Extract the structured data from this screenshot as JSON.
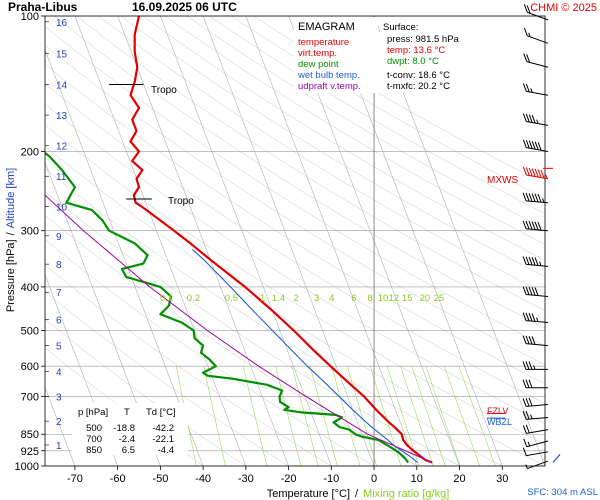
{
  "header": {
    "station": "Praha-Libus",
    "datetime": "16.09.2025 06 UTC",
    "credit": "CHMI © 2025"
  },
  "legend": {
    "title": "EMAGRAM",
    "items": [
      {
        "label": "temperature",
        "color": "#e00000"
      },
      {
        "label": "virt.temp.",
        "color": "#e00000"
      },
      {
        "label": "dew point",
        "color": "#009000"
      },
      {
        "label": "wet bulb temp.",
        "color": "#1e60d0"
      },
      {
        "label": "udpraft v.temp.",
        "color": "#a000a0"
      }
    ]
  },
  "surface": {
    "title": "Surface:",
    "lines": [
      {
        "text": "press: 981.5 hPa",
        "color": "#000000"
      },
      {
        "text": "temp: 13.6 °C",
        "color": "#e00000"
      },
      {
        "text": "dwpt: 8.0 °C",
        "color": "#009000"
      },
      {
        "text": "t-conv: 18.6 °C",
        "color": "#000000"
      },
      {
        "text": "t-mxfc: 20.2 °C",
        "color": "#000000"
      }
    ]
  },
  "summary_table": {
    "headers": [
      "p [hPa]",
      "T",
      "Td [°C]"
    ],
    "rows": [
      [
        "500",
        "-18.8",
        "-42.2"
      ],
      [
        "700",
        "-2.4",
        "-22.1"
      ],
      [
        "850",
        "6.5",
        "-4.4"
      ]
    ]
  },
  "annotations": {
    "tropo_label": "Tropo",
    "mxws_label": "MXWS",
    "fzl_label": "FZLV",
    "wbzl_label": "WBZL",
    "sfc_label": "SFC: 304 m ASL"
  },
  "colors": {
    "temperature": "#e00000",
    "dewpoint": "#009000",
    "wetbulb": "#1e60d0",
    "parcel": "#a000a0",
    "mixing_ratio": "#99dd55",
    "mixing_label": "#88cc22",
    "isotherm": "#b0b0b0",
    "altitude_label": "#2040c0"
  },
  "chart_data": {
    "type": "line",
    "title": "",
    "xlabel": "Temperature [°C]",
    "xlabel_sep": "/",
    "xlabel2": "Mixing ratio [g/kg]",
    "ylabel": "Pressure [hPa]",
    "ylabel_sep": "/",
    "ylabel2": "Altitude [km]",
    "x_ticks": [
      -70,
      -60,
      -50,
      -40,
      -30,
      -20,
      -10,
      0,
      10,
      20,
      30
    ],
    "xlim": [
      -77,
      40
    ],
    "y_scale": "log",
    "ylim": [
      1000,
      100
    ],
    "y_ticks": [
      100,
      200,
      300,
      400,
      500,
      600,
      700,
      850,
      925,
      1000
    ],
    "altitude_ticks_km": [
      {
        "km": "1",
        "p": 898
      },
      {
        "km": "2",
        "p": 795
      },
      {
        "km": "3",
        "p": 701
      },
      {
        "km": "4",
        "p": 616
      },
      {
        "km": "5",
        "p": 540
      },
      {
        "km": "6",
        "p": 472
      },
      {
        "km": "7",
        "p": 411
      },
      {
        "km": "8",
        "p": 356
      },
      {
        "km": "9",
        "p": 308
      },
      {
        "km": "10",
        "p": 265
      },
      {
        "km": "11",
        "p": 227
      },
      {
        "km": "12",
        "p": 194
      },
      {
        "km": "13",
        "p": 166
      },
      {
        "km": "14",
        "p": 142
      },
      {
        "km": "15",
        "p": 121
      },
      {
        "km": "16",
        "p": 103
      }
    ],
    "mixing_ratio_labels": [
      "0.1",
      "0.2",
      "0.5",
      "1",
      "1.4",
      "2",
      "3",
      "4",
      "6",
      "8",
      "10",
      "12",
      "15",
      "20",
      "25"
    ],
    "mixing_ratio_values": [
      0.1,
      0.2,
      0.5,
      1,
      1.4,
      2,
      3,
      4,
      6,
      8,
      10,
      12,
      15,
      20,
      25
    ],
    "series": [
      {
        "key": "temperature",
        "points": [
          [
            982,
            13.6
          ],
          [
            970,
            12.0
          ],
          [
            950,
            10.8
          ],
          [
            925,
            9.2
          ],
          [
            900,
            7.8
          ],
          [
            875,
            6.8
          ],
          [
            850,
            6.5
          ],
          [
            820,
            4.8
          ],
          [
            800,
            3.5
          ],
          [
            750,
            0.5
          ],
          [
            700,
            -2.4
          ],
          [
            650,
            -6.2
          ],
          [
            600,
            -10.2
          ],
          [
            550,
            -14.4
          ],
          [
            500,
            -18.8
          ],
          [
            450,
            -24.0
          ],
          [
            420,
            -27.6
          ],
          [
            400,
            -30.2
          ],
          [
            380,
            -33.2
          ],
          [
            350,
            -38.0
          ],
          [
            320,
            -43.0
          ],
          [
            300,
            -46.8
          ],
          [
            280,
            -51.0
          ],
          [
            265,
            -54.4
          ],
          [
            260,
            -55.8
          ],
          [
            250,
            -56.2
          ],
          [
            240,
            -55.0
          ],
          [
            230,
            -55.6
          ],
          [
            220,
            -54.2
          ],
          [
            210,
            -56.6
          ],
          [
            200,
            -55.0
          ],
          [
            190,
            -57.0
          ],
          [
            180,
            -55.6
          ],
          [
            170,
            -56.6
          ],
          [
            160,
            -55.0
          ],
          [
            150,
            -57.0
          ],
          [
            140,
            -56.0
          ],
          [
            130,
            -55.4
          ],
          [
            120,
            -56.0
          ],
          [
            110,
            -56.0
          ],
          [
            100,
            -55.0
          ]
        ]
      },
      {
        "key": "dewpoint",
        "points": [
          [
            982,
            8.0
          ],
          [
            960,
            7.2
          ],
          [
            930,
            5.6
          ],
          [
            900,
            3.2
          ],
          [
            875,
            1.0
          ],
          [
            860,
            -3.0
          ],
          [
            850,
            -4.4
          ],
          [
            830,
            -5.8
          ],
          [
            820,
            -8.0
          ],
          [
            800,
            -9.5
          ],
          [
            780,
            -7.5
          ],
          [
            770,
            -9.0
          ],
          [
            760,
            -17.0
          ],
          [
            750,
            -21.0
          ],
          [
            740,
            -20.0
          ],
          [
            720,
            -22.0
          ],
          [
            700,
            -22.1
          ],
          [
            680,
            -21.5
          ],
          [
            660,
            -25.0
          ],
          [
            640,
            -33.0
          ],
          [
            630,
            -39.0
          ],
          [
            620,
            -40.0
          ],
          [
            600,
            -37.0
          ],
          [
            580,
            -38.5
          ],
          [
            560,
            -40.5
          ],
          [
            540,
            -40.0
          ],
          [
            520,
            -42.0
          ],
          [
            500,
            -42.2
          ],
          [
            480,
            -45.0
          ],
          [
            460,
            -50.0
          ],
          [
            440,
            -48.0
          ],
          [
            420,
            -47.5
          ],
          [
            400,
            -50.0
          ],
          [
            380,
            -58.0
          ],
          [
            365,
            -59.0
          ],
          [
            355,
            -54.0
          ],
          [
            340,
            -53.0
          ],
          [
            320,
            -56.0
          ],
          [
            300,
            -62.0
          ],
          [
            285,
            -63.5
          ],
          [
            270,
            -66.0
          ],
          [
            260,
            -72.0
          ],
          [
            240,
            -70.0
          ],
          [
            220,
            -73.0
          ],
          [
            205,
            -76.0
          ],
          [
            195,
            -79.0
          ]
        ]
      },
      {
        "key": "wetbulb",
        "points": [
          [
            982,
            10.2
          ],
          [
            950,
            8.3
          ],
          [
            925,
            6.5
          ],
          [
            900,
            4.6
          ],
          [
            875,
            3.2
          ],
          [
            850,
            1.5
          ],
          [
            820,
            -0.5
          ],
          [
            800,
            -1.8
          ],
          [
            750,
            -5.0
          ],
          [
            700,
            -8.2
          ],
          [
            650,
            -11.7
          ],
          [
            600,
            -15.6
          ],
          [
            550,
            -19.5
          ],
          [
            500,
            -23.8
          ],
          [
            450,
            -28.5
          ],
          [
            400,
            -33.6
          ],
          [
            350,
            -39.6
          ],
          [
            330,
            -42.5
          ]
        ]
      },
      {
        "key": "parcel",
        "points": [
          [
            982,
            13.6
          ],
          [
            850,
            -1.5
          ],
          [
            800,
            -6.0
          ],
          [
            700,
            -16.0
          ],
          [
            600,
            -27.0
          ],
          [
            500,
            -39.0
          ],
          [
            400,
            -52.5
          ],
          [
            300,
            -68.0
          ],
          [
            250,
            -77.0
          ]
        ]
      }
    ],
    "wind_barbs": [
      {
        "p": 975,
        "dir": 250,
        "spd": 5
      },
      {
        "p": 930,
        "dir": 260,
        "spd": 10
      },
      {
        "p": 880,
        "dir": 255,
        "spd": 15
      },
      {
        "p": 830,
        "dir": 260,
        "spd": 20
      },
      {
        "p": 780,
        "dir": 265,
        "spd": 25
      },
      {
        "p": 730,
        "dir": 265,
        "spd": 30
      },
      {
        "p": 670,
        "dir": 270,
        "spd": 30
      },
      {
        "p": 610,
        "dir": 270,
        "spd": 35
      },
      {
        "p": 540,
        "dir": 275,
        "spd": 40
      },
      {
        "p": 480,
        "dir": 275,
        "spd": 45
      },
      {
        "p": 420,
        "dir": 275,
        "spd": 50
      },
      {
        "p": 360,
        "dir": 275,
        "spd": 55
      },
      {
        "p": 300,
        "dir": 275,
        "spd": 60
      },
      {
        "p": 260,
        "dir": 275,
        "spd": 65
      },
      {
        "p": 230,
        "dir": 280,
        "spd": 75
      },
      {
        "p": 200,
        "dir": 280,
        "spd": 60
      },
      {
        "p": 175,
        "dir": 280,
        "spd": 45
      },
      {
        "p": 150,
        "dir": 280,
        "spd": 25
      },
      {
        "p": 130,
        "dir": 285,
        "spd": 20
      },
      {
        "p": 115,
        "dir": 290,
        "spd": 15
      },
      {
        "p": 102,
        "dir": 290,
        "spd": 20
      }
    ],
    "levels": {
      "tropo_lower_p": 255,
      "tropo_upper_p": 142,
      "mxws_p": 218,
      "fzl_p": 760,
      "wbzl_p": 795
    }
  }
}
